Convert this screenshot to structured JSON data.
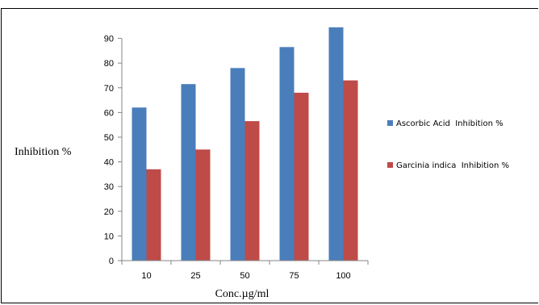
{
  "chart_data": {
    "type": "bar",
    "categories": [
      "10",
      "25",
      "50",
      "75",
      "100"
    ],
    "series": [
      {
        "name": "Ascorbic Acid  Inhibition %",
        "values": [
          62,
          71.5,
          78,
          86.5,
          94.5
        ],
        "color": "#4a7ebb"
      },
      {
        "name": "Garcinia indica  Inhibition %",
        "values": [
          37,
          45,
          56.5,
          68,
          73
        ],
        "color": "#be4b48"
      }
    ],
    "xlabel": "Conc.µg/ml",
    "ylabel": "Inhibition  %",
    "yticks": [
      "0",
      "10",
      "20",
      "30",
      "40",
      "50",
      "60",
      "70",
      "80",
      "90"
    ],
    "ylim": [
      0,
      100
    ],
    "legend_position": "right"
  }
}
